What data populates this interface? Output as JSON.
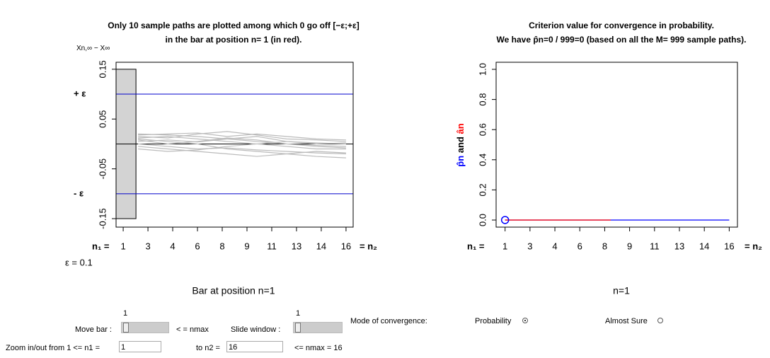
{
  "chart_data": [
    {
      "type": "line",
      "title": [
        "Only 10 sample paths are plotted among which 0 go off [−ε;+ε]",
        "in the bar at position n= 1 (in red)."
      ],
      "ylabel": [
        {
          "text": "Xn,∞ − X∞",
          "color": "#000000"
        }
      ],
      "xlim": [
        0.52,
        16.48
      ],
      "ylim": [
        -0.167,
        0.164
      ],
      "yticks": [
        -0.15,
        -0.05,
        0.05,
        0.15
      ],
      "xticks": [
        {
          "value": 1,
          "label": "1"
        },
        {
          "value": 2.667,
          "label": "3"
        },
        {
          "value": 4.333,
          "label": "4"
        },
        {
          "value": 6,
          "label": "6"
        },
        {
          "value": 7.667,
          "label": "8"
        },
        {
          "value": 9.333,
          "label": "9"
        },
        {
          "value": 11,
          "label": "11"
        },
        {
          "value": 12.667,
          "label": "13"
        },
        {
          "value": 14.333,
          "label": "14"
        },
        {
          "value": 16,
          "label": "16"
        }
      ],
      "xlabel_left": "n₁ =",
      "xlabel_right": "= n₂",
      "epsilon_text": "ε = 0.1",
      "caption": "Bar at position n=1",
      "highlight_bar": {
        "x": [
          0.52,
          1.86
        ],
        "y": [
          -0.15,
          0.15
        ],
        "color": "#d3d3d3"
      },
      "hlines": [
        {
          "value": 0.1,
          "label": "+ ε",
          "color": "#0000cc"
        },
        {
          "value": -0.1,
          "label": "- ε",
          "color": "#0000cc"
        },
        {
          "value": 0,
          "color": "#000000"
        }
      ],
      "series": [
        {
          "color": "#bbbbbb",
          "x": [
            2,
            4,
            6,
            8,
            10,
            12,
            14,
            16
          ],
          "values": [
            0.02,
            0.018,
            0.015,
            0.01,
            0.005,
            0.0,
            -0.005,
            -0.008
          ]
        },
        {
          "color": "#bbbbbb",
          "x": [
            2,
            4,
            6,
            8,
            10,
            12,
            14,
            16
          ],
          "values": [
            0.015,
            0.012,
            0.02,
            0.025,
            0.018,
            0.01,
            0.008,
            0.005
          ]
        },
        {
          "color": "#bbbbbb",
          "x": [
            2,
            4,
            6,
            8,
            10,
            12,
            14,
            16
          ],
          "values": [
            0.01,
            0.005,
            0.0,
            -0.01,
            -0.015,
            -0.02,
            -0.025,
            -0.028
          ]
        },
        {
          "color": "#bbbbbb",
          "x": [
            2,
            4,
            6,
            8,
            10,
            12,
            14,
            16
          ],
          "values": [
            0.005,
            0.008,
            0.004,
            0.01,
            0.015,
            0.005,
            0.0,
            0.002
          ]
        },
        {
          "color": "#bbbbbb",
          "x": [
            2,
            4,
            6,
            8,
            10,
            12,
            14,
            16
          ],
          "values": [
            0.0,
            -0.005,
            -0.01,
            -0.008,
            -0.012,
            -0.015,
            -0.018,
            -0.02
          ]
        },
        {
          "color": "#bbbbbb",
          "x": [
            2,
            4,
            6,
            8,
            10,
            12,
            14,
            16
          ],
          "values": [
            -0.005,
            -0.01,
            -0.015,
            -0.02,
            -0.025,
            -0.02,
            -0.015,
            -0.018
          ]
        },
        {
          "color": "#bbbbbb",
          "x": [
            2,
            4,
            6,
            8,
            10,
            12,
            14,
            16
          ],
          "values": [
            0.012,
            0.015,
            0.01,
            0.005,
            0.0,
            -0.005,
            -0.01,
            -0.01
          ]
        },
        {
          "color": "#bbbbbb",
          "x": [
            2,
            4,
            6,
            8,
            10,
            12,
            14,
            16
          ],
          "values": [
            -0.01,
            -0.015,
            -0.012,
            -0.005,
            0.0,
            0.005,
            0.002,
            0.0
          ]
        },
        {
          "color": "#bbbbbb",
          "x": [
            2,
            4,
            6,
            8,
            10,
            12,
            14,
            16
          ],
          "values": [
            0.018,
            0.02,
            0.022,
            0.015,
            0.02,
            0.015,
            0.01,
            0.008
          ]
        },
        {
          "color": "#bbbbbb",
          "x": [
            2,
            4,
            6,
            8,
            10,
            12,
            14,
            16
          ],
          "values": [
            0.008,
            0.0,
            0.005,
            0.012,
            0.008,
            0.0,
            -0.003,
            -0.005
          ]
        }
      ]
    },
    {
      "type": "line",
      "title": [
        "Criterion value for convergence in probability.",
        "We have p̂n=0 / 999=0 (based on all the M= 999 sample paths)."
      ],
      "ylabel": [
        {
          "text": "p̂n",
          "color": "#0000ff"
        },
        {
          "text": " and ",
          "color": "#000000"
        },
        {
          "text": "ân",
          "color": "#ff0000"
        }
      ],
      "xlim": [
        0.4,
        16.55
      ],
      "ylim": [
        -0.047,
        1.047
      ],
      "yticks": [
        {
          "value": 0,
          "label": "0.0"
        },
        0.2,
        0.4,
        0.6,
        0.8,
        {
          "value": 1,
          "label": "1.0"
        }
      ],
      "xticks": [
        {
          "value": 1,
          "label": "1"
        },
        {
          "value": 2.667,
          "label": "3"
        },
        {
          "value": 4.333,
          "label": "4"
        },
        {
          "value": 6,
          "label": "6"
        },
        {
          "value": 7.667,
          "label": "8"
        },
        {
          "value": 9.333,
          "label": "9"
        },
        {
          "value": 11,
          "label": "11"
        },
        {
          "value": 12.667,
          "label": "13"
        },
        {
          "value": 14.333,
          "label": "14"
        },
        {
          "value": 16,
          "label": "16"
        }
      ],
      "xlabel_left": "n₁ =",
      "xlabel_right": "= n₂",
      "caption": "n=1",
      "series": [
        {
          "color": "#0000ff",
          "x": [
            1,
            16
          ],
          "values": [
            0,
            0
          ]
        },
        {
          "color": "#ff0000",
          "x": [
            1,
            8.07
          ],
          "values": [
            0,
            0
          ]
        },
        {
          "color": "#0000ff",
          "x": [
            1
          ],
          "values": [
            0
          ],
          "marker": "circle"
        }
      ]
    }
  ],
  "controls": {
    "move_bar_value": "1",
    "move_bar_label": "Move bar :",
    "nmax_note": "< =  nmax",
    "slide_value": "1",
    "slide_label": "Slide window :",
    "mode_label": "Mode of convergence:",
    "probability": "Probability",
    "almost_sure": "Almost Sure",
    "zoom_label": "Zoom in/out from 1 <= n1 =",
    "n1_input": "1",
    "to_n2_label": "to n2 =",
    "n2_input": "16",
    "nmax_label": "<= nmax = 16"
  }
}
